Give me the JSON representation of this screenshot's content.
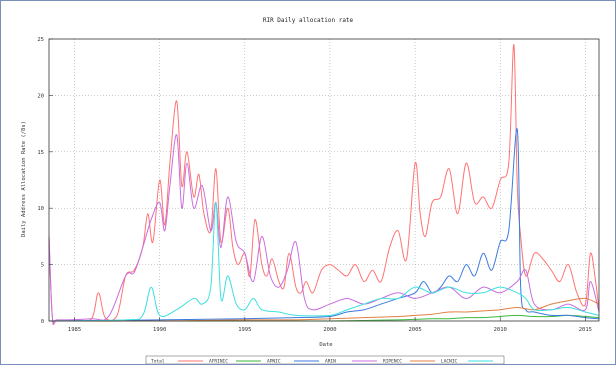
{
  "chart_data": {
    "type": "line",
    "title": "RIR Daily allocation rate",
    "xlabel": "Date",
    "ylabel": "Daily Address Allocation Rate (/8s)",
    "xlim": [
      1983.5,
      2015.8
    ],
    "ylim": [
      0,
      25
    ],
    "xticks": [
      1985,
      1990,
      1995,
      2000,
      2005,
      2010,
      2015
    ],
    "yticks": [
      0,
      5,
      10,
      15,
      20,
      25
    ],
    "grid": true,
    "legend_position": "bottom",
    "series": [
      {
        "name": "Total",
        "color": "#ff7373",
        "x": [
          1983.5,
          1983.7,
          1984.0,
          1985.0,
          1986.0,
          1986.4,
          1986.8,
          1987.5,
          1988.0,
          1988.5,
          1989.0,
          1989.3,
          1989.6,
          1990.0,
          1990.3,
          1990.6,
          1991.0,
          1991.3,
          1991.6,
          1992.0,
          1992.3,
          1992.6,
          1993.0,
          1993.3,
          1993.6,
          1994.0,
          1994.3,
          1994.6,
          1995.0,
          1995.3,
          1995.6,
          1996.0,
          1996.3,
          1996.6,
          1997.0,
          1997.3,
          1997.6,
          1998.0,
          1998.3,
          1998.6,
          1999.0,
          1999.5,
          2000.0,
          2000.5,
          2001.0,
          2001.5,
          2002.0,
          2002.5,
          2003.0,
          2003.5,
          2004.0,
          2004.5,
          2005.0,
          2005.3,
          2005.6,
          2006.0,
          2006.5,
          2007.0,
          2007.5,
          2008.0,
          2008.5,
          2009.0,
          2009.5,
          2010.0,
          2010.5,
          2010.8,
          2011.0,
          2011.2,
          2011.5,
          2012.0,
          2012.5,
          2013.0,
          2013.5,
          2014.0,
          2014.5,
          2015.0,
          2015.3,
          2015.6,
          2015.8
        ],
        "values": [
          7.5,
          0.3,
          0.1,
          0.1,
          0.2,
          2.5,
          0.3,
          0.5,
          4.0,
          4.5,
          6.5,
          9.5,
          7.0,
          12.5,
          8.5,
          14.0,
          19.5,
          12.0,
          15.0,
          11.0,
          13.0,
          9.5,
          8.0,
          13.5,
          7.0,
          10.0,
          6.5,
          5.0,
          6.0,
          4.0,
          9.0,
          5.0,
          4.0,
          5.5,
          3.5,
          3.0,
          6.0,
          3.0,
          2.5,
          3.5,
          2.5,
          4.5,
          5.0,
          4.5,
          4.0,
          5.0,
          3.5,
          4.5,
          3.5,
          6.5,
          8.0,
          5.5,
          14.0,
          9.5,
          7.5,
          10.5,
          11.0,
          13.5,
          9.5,
          14.0,
          10.5,
          11.0,
          10.0,
          12.5,
          14.0,
          24.5,
          12.0,
          7.5,
          4.0,
          6.0,
          5.5,
          4.5,
          3.5,
          5.0,
          2.5,
          1.5,
          6.0,
          3.5,
          1.0
        ]
      },
      {
        "name": "AFRINIC",
        "color": "#3cb93c",
        "x": [
          1983.5,
          1998.0,
          2000.0,
          2002.0,
          2004.0,
          2005.0,
          2006.0,
          2007.0,
          2008.0,
          2009.0,
          2010.0,
          2011.0,
          2012.0,
          2013.0,
          2014.0,
          2015.0,
          2015.8
        ],
        "values": [
          0,
          0,
          0,
          0.05,
          0.1,
          0.15,
          0.2,
          0.2,
          0.3,
          0.3,
          0.4,
          0.5,
          0.4,
          0.4,
          0.5,
          0.4,
          0.3
        ]
      },
      {
        "name": "APNIC",
        "color": "#3b7be0",
        "x": [
          1983.5,
          1990.0,
          1995.0,
          1998.0,
          2000.0,
          2001.0,
          2002.0,
          2003.0,
          2004.0,
          2005.0,
          2005.5,
          2006.0,
          2006.5,
          2007.0,
          2007.5,
          2008.0,
          2008.5,
          2009.0,
          2009.5,
          2010.0,
          2010.5,
          2011.0,
          2011.2,
          2011.5,
          2012.0,
          2013.0,
          2014.0,
          2015.0,
          2015.8
        ],
        "values": [
          0,
          0.1,
          0.2,
          0.3,
          0.4,
          0.8,
          1.0,
          1.5,
          2.0,
          2.5,
          3.5,
          2.5,
          3.0,
          4.0,
          3.5,
          5.0,
          4.0,
          6.0,
          4.5,
          7.0,
          8.0,
          17.0,
          3.0,
          1.0,
          0.8,
          0.5,
          0.5,
          0.3,
          0.2
        ]
      },
      {
        "name": "ARIN",
        "color": "#c86ee0",
        "x": [
          1983.5,
          1983.7,
          1984.0,
          1986.0,
          1987.0,
          1988.0,
          1988.5,
          1989.0,
          1989.5,
          1990.0,
          1990.3,
          1990.6,
          1991.0,
          1991.3,
          1991.6,
          1992.0,
          1992.5,
          1993.0,
          1993.3,
          1993.6,
          1994.0,
          1994.5,
          1995.0,
          1995.5,
          1996.0,
          1996.5,
          1997.0,
          1997.5,
          1998.0,
          1998.5,
          1999.0,
          2000.0,
          2001.0,
          2002.0,
          2003.0,
          2004.0,
          2005.0,
          2006.0,
          2007.0,
          2008.0,
          2009.0,
          2010.0,
          2011.0,
          2011.5,
          2012.0,
          2013.0,
          2014.0,
          2015.0,
          2015.3,
          2015.8
        ],
        "values": [
          7.5,
          0.3,
          0.1,
          0.2,
          0.4,
          4.0,
          4.3,
          6.5,
          9.0,
          10.5,
          8.0,
          12.0,
          16.5,
          10.0,
          14.0,
          10.0,
          12.0,
          8.0,
          10.5,
          6.5,
          11.0,
          7.0,
          6.0,
          3.5,
          7.5,
          4.0,
          3.0,
          4.5,
          7.0,
          2.0,
          1.0,
          1.5,
          2.0,
          1.5,
          2.0,
          2.5,
          2.0,
          2.5,
          3.0,
          2.0,
          3.0,
          2.5,
          3.5,
          4.5,
          1.5,
          1.0,
          1.5,
          1.0,
          3.5,
          0.8
        ]
      },
      {
        "name": "RIPENCC",
        "color": "#e08040",
        "x": [
          1983.5,
          1990.0,
          1995.0,
          1998.0,
          2000.0,
          2002.0,
          2004.0,
          2005.0,
          2006.0,
          2007.0,
          2008.0,
          2009.0,
          2010.0,
          2011.0,
          2012.0,
          2013.0,
          2014.0,
          2015.0,
          2015.8
        ],
        "values": [
          0,
          0,
          0.1,
          0.1,
          0.2,
          0.3,
          0.4,
          0.5,
          0.6,
          0.8,
          0.8,
          0.9,
          1.0,
          1.2,
          1.0,
          1.5,
          1.8,
          2.0,
          1.5
        ]
      },
      {
        "name": "LACNIC",
        "color": "#3ee0e0",
        "x": [
          1983.5,
          1988.0,
          1989.0,
          1989.5,
          1990.0,
          1991.0,
          1992.0,
          1992.5,
          1993.0,
          1993.3,
          1993.6,
          1994.0,
          1994.5,
          1995.0,
          1995.5,
          1996.0,
          1997.0,
          1998.0,
          2000.0,
          2001.0,
          2002.0,
          2003.0,
          2004.0,
          2005.0,
          2006.0,
          2007.0,
          2008.0,
          2009.0,
          2010.0,
          2011.0,
          2011.5,
          2012.0,
          2013.0,
          2014.0,
          2015.0,
          2015.8
        ],
        "values": [
          0,
          0.1,
          0.5,
          3.0,
          0.5,
          1.0,
          2.0,
          1.5,
          3.0,
          10.5,
          2.0,
          4.0,
          1.5,
          1.0,
          2.0,
          1.0,
          0.8,
          0.5,
          0.5,
          1.0,
          1.5,
          2.0,
          2.0,
          3.0,
          2.5,
          3.0,
          2.5,
          2.5,
          3.0,
          2.5,
          2.0,
          1.0,
          1.0,
          1.2,
          0.8,
          0.5
        ]
      }
    ]
  }
}
